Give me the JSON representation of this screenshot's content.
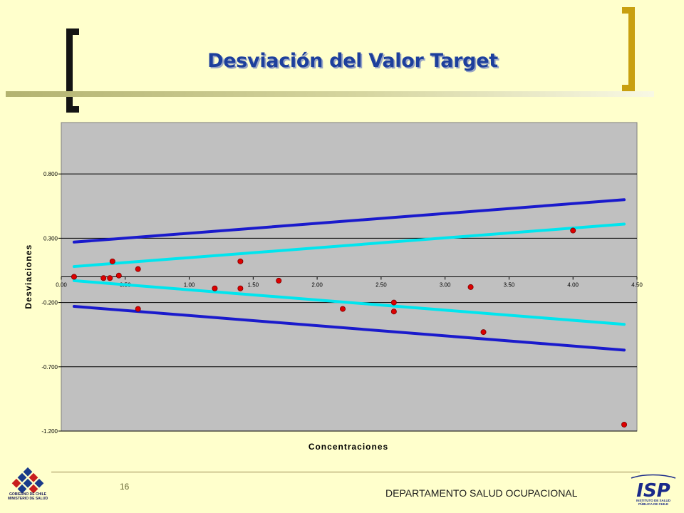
{
  "slide": {
    "title": "Desviación del Valor Target",
    "page_number": "16",
    "department": "DEPARTAMENTO SALUD OCUPACIONAL",
    "gov_logo_text": [
      "GOBIERNO DE CHILE",
      "MINISTERIO DE SALUD"
    ],
    "isp_logo_text": [
      "INSTITUTO DE SALUD",
      "PÚBLICA DE CHILE"
    ],
    "isp_letters": "ISP"
  },
  "colors": {
    "background": "#ffffcc",
    "title": "#1d3f9c",
    "plot_area": "#c0c0c0",
    "outer_limit_line": "#1a1acc",
    "inner_limit_line": "#00e5ee",
    "points": "#dd0000",
    "left_bracket": "#141414",
    "right_bracket": "#c8a010"
  },
  "chart_data": {
    "type": "scatter",
    "title": "",
    "xlabel": "Concentraciones",
    "ylabel": "Desviaciones",
    "xlim": [
      0.0,
      4.5
    ],
    "ylim": [
      -1.2,
      1.2
    ],
    "x_ticks": [
      "0.00",
      "0.50",
      "1.00",
      "1.50",
      "2.00",
      "2.50",
      "3.00",
      "3.50",
      "4.00",
      "4.50"
    ],
    "y_ticks": [
      {
        "value": 0.8,
        "label": "0.800"
      },
      {
        "value": 0.3,
        "label": "0.300"
      },
      {
        "value": -0.2,
        "label": "-0.200"
      },
      {
        "value": -0.7,
        "label": "-0.700"
      },
      {
        "value": -1.2,
        "label": "-1.200"
      }
    ],
    "grid": "horizontal",
    "x_axis_at_y": 0,
    "series": [
      {
        "kind": "points",
        "points": [
          {
            "x": 0.1,
            "y": 0.0
          },
          {
            "x": 0.33,
            "y": -0.01
          },
          {
            "x": 0.38,
            "y": -0.01
          },
          {
            "x": 0.45,
            "y": 0.01
          },
          {
            "x": 0.4,
            "y": 0.12
          },
          {
            "x": 0.6,
            "y": 0.06
          },
          {
            "x": 0.6,
            "y": -0.25
          },
          {
            "x": 1.2,
            "y": -0.09
          },
          {
            "x": 1.4,
            "y": -0.09
          },
          {
            "x": 1.4,
            "y": 0.12
          },
          {
            "x": 1.7,
            "y": -0.03
          },
          {
            "x": 2.2,
            "y": -0.25
          },
          {
            "x": 2.6,
            "y": -0.2
          },
          {
            "x": 2.6,
            "y": -0.27
          },
          {
            "x": 3.2,
            "y": -0.08
          },
          {
            "x": 3.3,
            "y": -0.43
          },
          {
            "x": 4.0,
            "y": 0.36
          },
          {
            "x": 4.4,
            "y": -1.15
          }
        ]
      },
      {
        "kind": "line",
        "role": "outer",
        "points": [
          {
            "x": 0.1,
            "y": 0.27
          },
          {
            "x": 4.4,
            "y": 0.6
          }
        ]
      },
      {
        "kind": "line",
        "role": "inner",
        "points": [
          {
            "x": 0.1,
            "y": 0.08
          },
          {
            "x": 4.4,
            "y": 0.41
          }
        ]
      },
      {
        "kind": "line",
        "role": "inner",
        "points": [
          {
            "x": 0.1,
            "y": -0.03
          },
          {
            "x": 4.4,
            "y": -0.37
          }
        ]
      },
      {
        "kind": "line",
        "role": "outer",
        "points": [
          {
            "x": 0.1,
            "y": -0.23
          },
          {
            "x": 4.4,
            "y": -0.57
          }
        ]
      }
    ]
  }
}
